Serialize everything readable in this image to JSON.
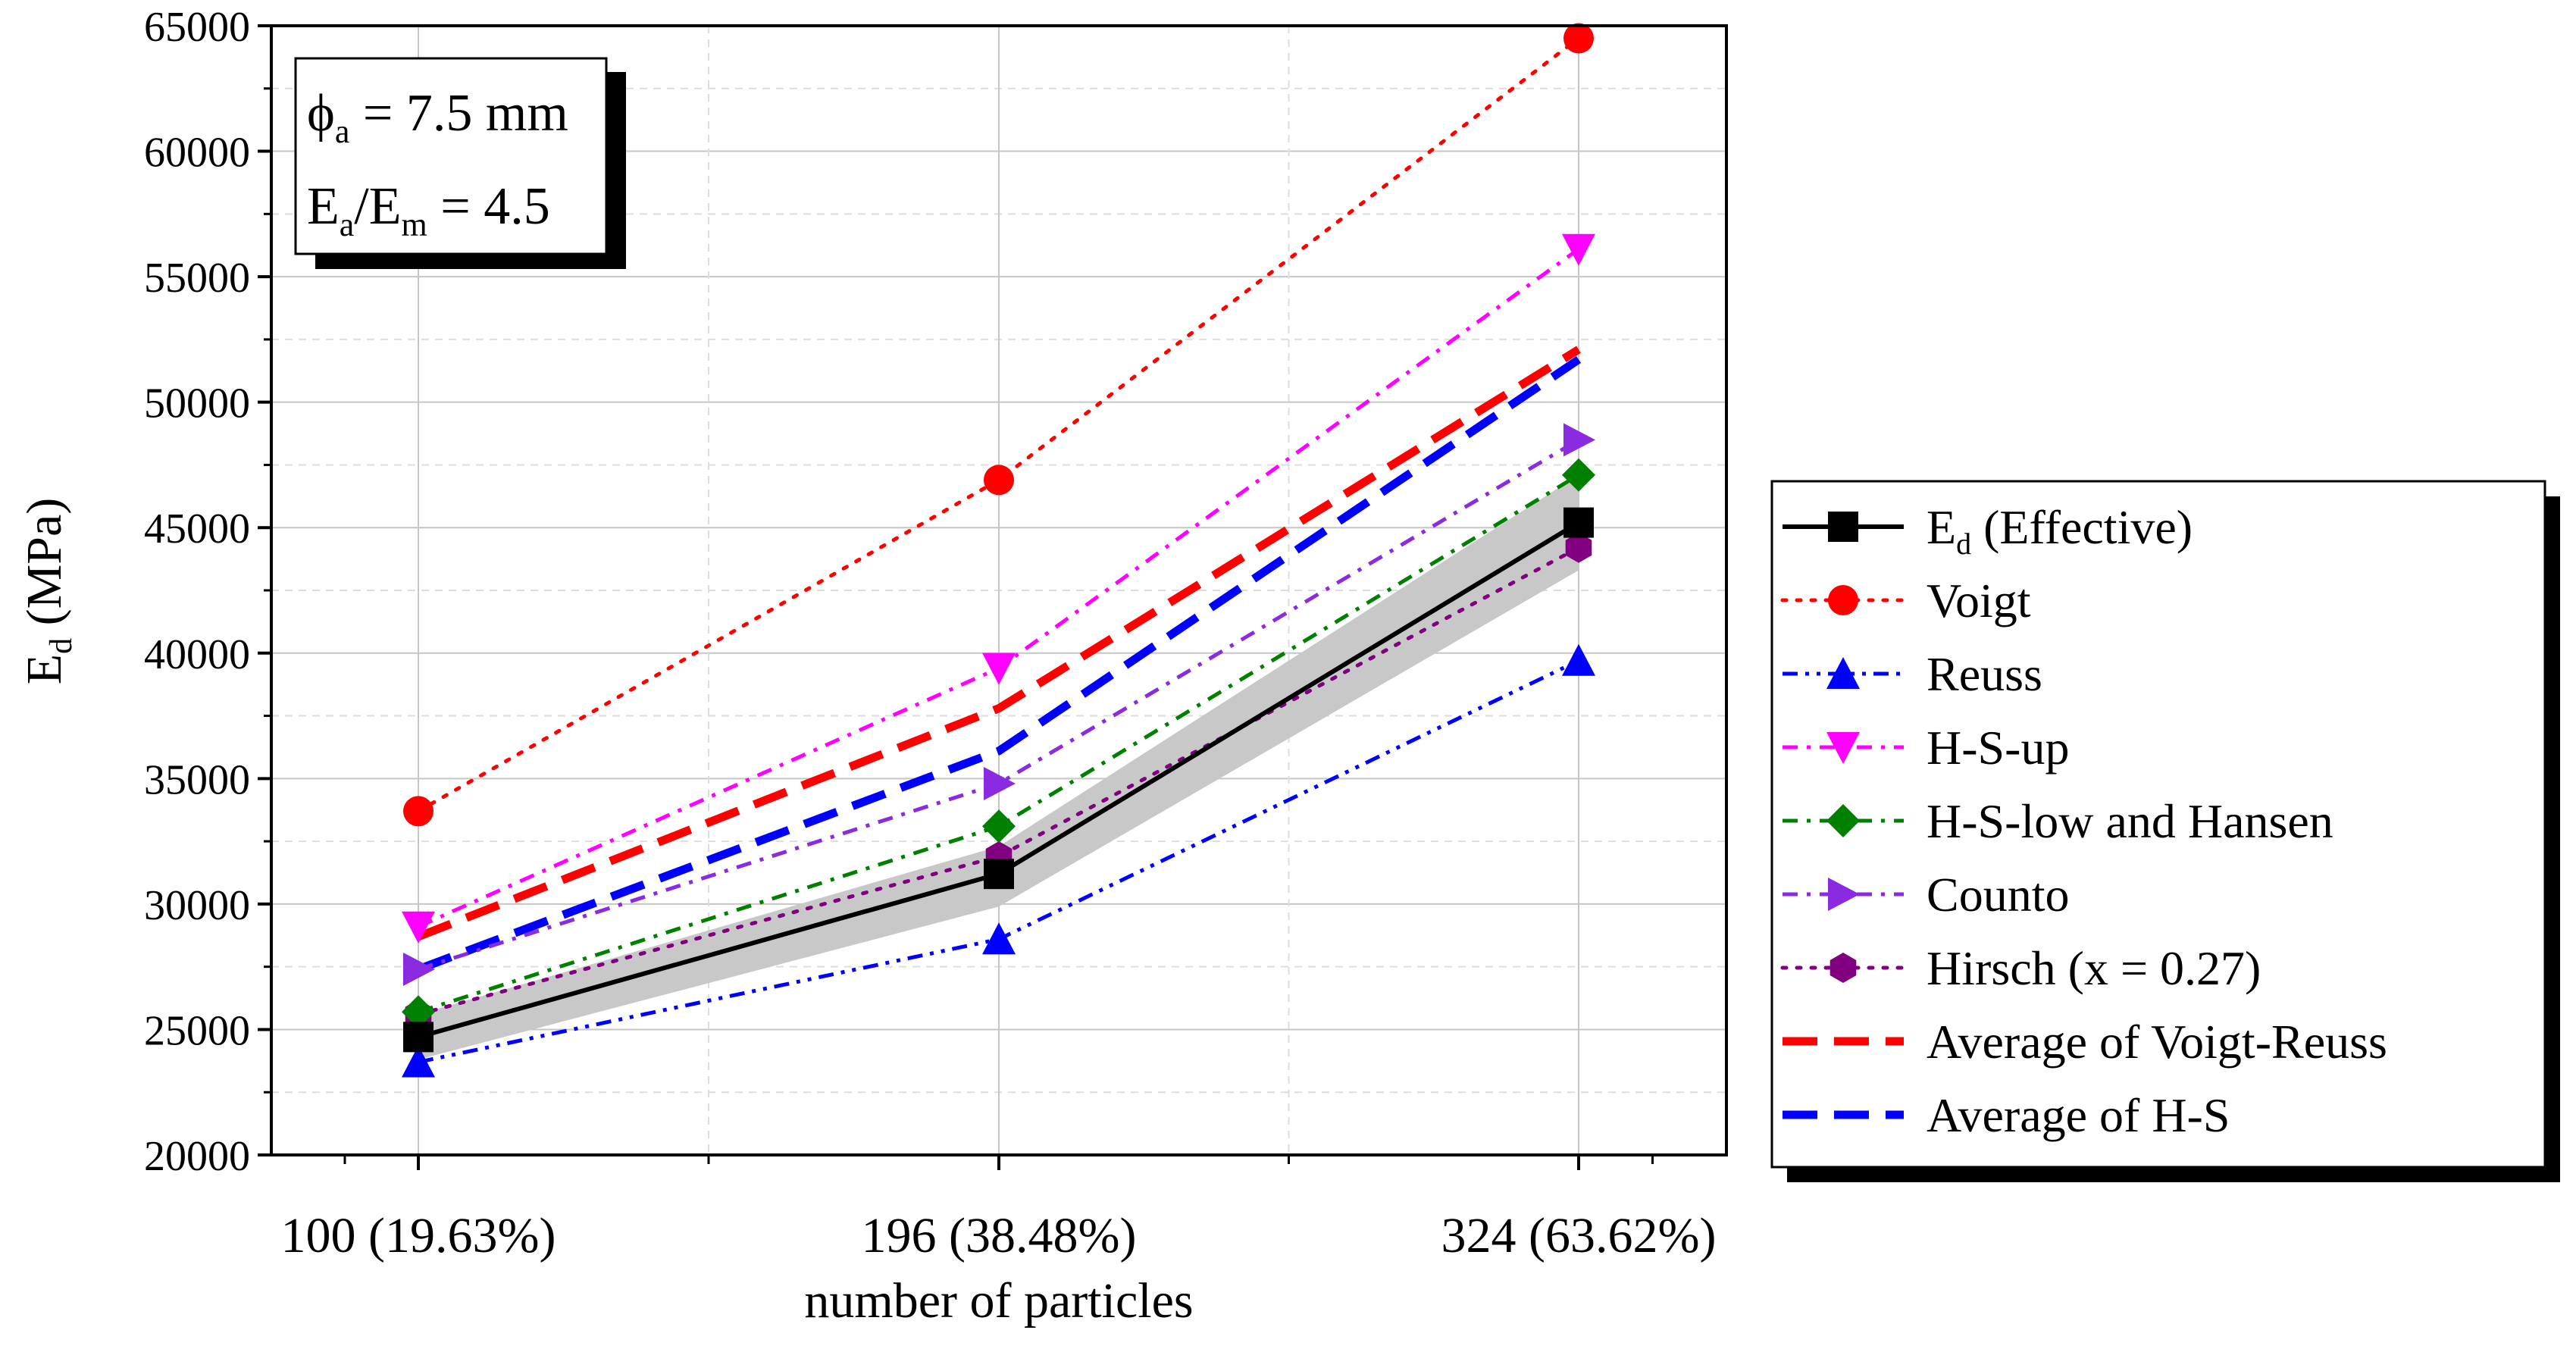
{
  "chart_data": {
    "type": "line",
    "title": "",
    "xlabel": "number of particles",
    "ylabel_main": "E",
    "ylabel_sub": "d",
    "ylabel_unit": " (MPa)",
    "ylim": [
      20000,
      65000
    ],
    "yticks": [
      20000,
      25000,
      30000,
      35000,
      40000,
      45000,
      50000,
      55000,
      60000,
      65000
    ],
    "ytick_labels": [
      "20000",
      "25000",
      "30000",
      "35000",
      "40000",
      "45000",
      "50000",
      "55000",
      "60000",
      "65000"
    ],
    "categories": [
      "100 (19.63%)",
      "196 (38.48%)",
      "324 (63.62%)"
    ],
    "grid": true,
    "legend_position": "right",
    "band": {
      "name": "E_d range",
      "color": "#c8c8c8",
      "lower": [
        23800,
        29900,
        43300
      ],
      "upper": [
        25600,
        32300,
        47100
      ]
    },
    "annotation": {
      "line1_main": "ϕ",
      "line1_sub": "a",
      "line1_rest": " = 7.5 mm",
      "line2_a": "E",
      "line2_a_sub": "a",
      "line2_mid": "/E",
      "line2_b_sub": "m",
      "line2_rest": " = 4.5"
    },
    "series": [
      {
        "name_main": "E",
        "name_sub": "d",
        "name_rest": " (Effective)",
        "values": [
          24700,
          31200,
          45200
        ],
        "color": "#000000",
        "marker": "square",
        "dash": "solid"
      },
      {
        "name": "Voigt",
        "values": [
          33700,
          46900,
          64500
        ],
        "color": "#ff0000",
        "marker": "circle",
        "dash": "dot"
      },
      {
        "name": "Reuss",
        "values": [
          23700,
          28600,
          39700
        ],
        "color": "#0000ff",
        "marker": "triangle-up",
        "dash": "dashdotdot"
      },
      {
        "name": "H-S-up",
        "values": [
          29100,
          39400,
          56100
        ],
        "color": "#ff00ff",
        "marker": "triangle-down",
        "dash": "dashdot"
      },
      {
        "name": "H-S-low and Hansen",
        "values": [
          25700,
          33100,
          47100
        ],
        "color": "#008000",
        "marker": "diamond",
        "dash": "dashdot"
      },
      {
        "name": "Counto",
        "values": [
          27400,
          34800,
          48500
        ],
        "color": "#8a2be2",
        "marker": "triangle-right",
        "dash": "dashdot"
      },
      {
        "name": "Hirsch (x = 0.27)",
        "values": [
          25600,
          31900,
          44200
        ],
        "color": "#800080",
        "marker": "hexagon",
        "dash": "dot"
      },
      {
        "name": "Average of Voigt-Reuss",
        "values": [
          28700,
          37800,
          52100
        ],
        "color": "#ff0000",
        "marker": "none",
        "dash": "dash"
      },
      {
        "name": "Average of H-S",
        "values": [
          27400,
          36100,
          51700
        ],
        "color": "#0000ff",
        "marker": "none",
        "dash": "dash"
      }
    ]
  }
}
